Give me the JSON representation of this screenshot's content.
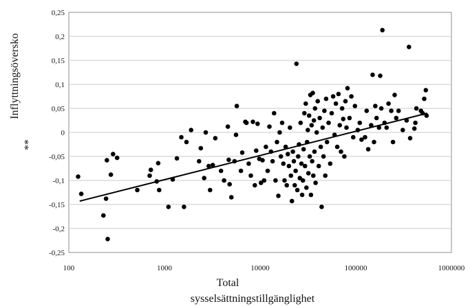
{
  "chart_data": {
    "type": "scatter",
    "title": "",
    "xlabel_lines": [
      "Total",
      "sysselsättningstillgänglighet"
    ],
    "ylabel": "Inflyttningsöversko",
    "ylabel_mark": "**",
    "x_scale": "log",
    "xlim": [
      100,
      1000000
    ],
    "ylim": [
      -0.25,
      0.25
    ],
    "x_ticks": [
      100,
      1000,
      10000,
      100000,
      1000000
    ],
    "x_tick_labels": [
      "100",
      "1000",
      "10000",
      "100000",
      "1000000"
    ],
    "y_ticks": [
      -0.25,
      -0.2,
      -0.15,
      -0.1,
      -0.05,
      0,
      0.05,
      0.1,
      0.15,
      0.2,
      0.25
    ],
    "y_tick_labels": [
      "-0,25",
      "-0,2",
      "-0,15",
      "-0,1",
      "-0,05",
      "0",
      "0,05",
      "0,1",
      "0,15",
      "0,2",
      "0,25"
    ],
    "grid": "horizontal",
    "trendline": {
      "x": [
        130,
        560000
      ],
      "y": [
        -0.143,
        0.04
      ]
    },
    "points": [
      [
        125,
        -0.092
      ],
      [
        135,
        -0.128
      ],
      [
        230,
        -0.173
      ],
      [
        245,
        -0.138
      ],
      [
        250,
        -0.058
      ],
      [
        255,
        -0.222
      ],
      [
        275,
        -0.088
      ],
      [
        290,
        -0.045
      ],
      [
        320,
        -0.053
      ],
      [
        520,
        -0.12
      ],
      [
        700,
        -0.09
      ],
      [
        720,
        -0.078
      ],
      [
        830,
        -0.102
      ],
      [
        860,
        -0.064
      ],
      [
        880,
        -0.12
      ],
      [
        1100,
        -0.155
      ],
      [
        1220,
        -0.098
      ],
      [
        1350,
        -0.054
      ],
      [
        1500,
        -0.01
      ],
      [
        1600,
        -0.155
      ],
      [
        1700,
        -0.02
      ],
      [
        1900,
        0.005
      ],
      [
        2300,
        -0.06
      ],
      [
        2400,
        -0.033
      ],
      [
        2600,
        -0.095
      ],
      [
        2700,
        0
      ],
      [
        2900,
        -0.07
      ],
      [
        3000,
        -0.12
      ],
      [
        3200,
        -0.068
      ],
      [
        3400,
        -0.012
      ],
      [
        3900,
        -0.08
      ],
      [
        4200,
        -0.1
      ],
      [
        4600,
        0.012
      ],
      [
        4700,
        -0.057
      ],
      [
        4800,
        -0.108
      ],
      [
        5000,
        -0.135
      ],
      [
        5400,
        -0.06
      ],
      [
        5600,
        -0.005
      ],
      [
        5700,
        0.055
      ],
      [
        6300,
        -0.08
      ],
      [
        6500,
        -0.042
      ],
      [
        7000,
        0.022
      ],
      [
        7200,
        0.02
      ],
      [
        7600,
        -0.065
      ],
      [
        8000,
        -0.09
      ],
      [
        8400,
        0.022
      ],
      [
        8800,
        -0.11
      ],
      [
        9100,
        -0.038
      ],
      [
        9400,
        0.018
      ],
      [
        9800,
        -0.055
      ],
      [
        10200,
        -0.105
      ],
      [
        10600,
        -0.058
      ],
      [
        11000,
        -0.1
      ],
      [
        11500,
        -0.03
      ],
      [
        12000,
        -0.08
      ],
      [
        12500,
        0.012
      ],
      [
        13000,
        -0.04
      ],
      [
        13500,
        -0.06
      ],
      [
        14000,
        0.04
      ],
      [
        14500,
        -0.1
      ],
      [
        15000,
        -0.02
      ],
      [
        15500,
        -0.132
      ],
      [
        16000,
        0
      ],
      [
        16500,
        -0.05
      ],
      [
        17000,
        0.02
      ],
      [
        17500,
        -0.065
      ],
      [
        18000,
        -0.1
      ],
      [
        18500,
        -0.03
      ],
      [
        19000,
        -0.11
      ],
      [
        19500,
        -0.045
      ],
      [
        20000,
        -0.07
      ],
      [
        20500,
        0.01
      ],
      [
        21000,
        -0.09
      ],
      [
        21500,
        -0.143
      ],
      [
        22000,
        -0.04
      ],
      [
        22500,
        -0.06
      ],
      [
        23000,
        -0.11
      ],
      [
        23500,
        -0.08
      ],
      [
        24000,
        0.143
      ],
      [
        24500,
        -0.12
      ],
      [
        25000,
        -0.05
      ],
      [
        25500,
        -0.025
      ],
      [
        26000,
        -0.095
      ],
      [
        26500,
        0.02
      ],
      [
        27000,
        -0.065
      ],
      [
        27500,
        -0.13
      ],
      [
        28000,
        -0.1
      ],
      [
        28500,
        -0.035
      ],
      [
        29000,
        0.04
      ],
      [
        29500,
        -0.07
      ],
      [
        30000,
        0.06
      ],
      [
        30500,
        -0.115
      ],
      [
        31000,
        -0.02
      ],
      [
        31500,
        0.005
      ],
      [
        32000,
        -0.085
      ],
      [
        32500,
        0.035
      ],
      [
        33000,
        -0.05
      ],
      [
        33500,
        0.078
      ],
      [
        34000,
        -0.13
      ],
      [
        34500,
        0.015
      ],
      [
        35000,
        -0.06
      ],
      [
        35500,
        0.082
      ],
      [
        36000,
        -0.09
      ],
      [
        36500,
        0.025
      ],
      [
        37000,
        -0.04
      ],
      [
        37500,
        0.05
      ],
      [
        38000,
        -0.105
      ],
      [
        39000,
        0
      ],
      [
        40000,
        0.065
      ],
      [
        41000,
        -0.07
      ],
      [
        42000,
        0.03
      ],
      [
        43000,
        -0.03
      ],
      [
        44000,
        -0.155
      ],
      [
        45000,
        0.01
      ],
      [
        46000,
        -0.05
      ],
      [
        47000,
        0.045
      ],
      [
        48000,
        -0.09
      ],
      [
        49000,
        0.07
      ],
      [
        50000,
        -0.02
      ],
      [
        52000,
        0.02
      ],
      [
        54000,
        -0.065
      ],
      [
        56000,
        0.04
      ],
      [
        58000,
        0.075
      ],
      [
        60000,
        -0.005
      ],
      [
        62000,
        0.06
      ],
      [
        64000,
        -0.03
      ],
      [
        66000,
        0.08
      ],
      [
        68000,
        0.015
      ],
      [
        70000,
        -0.04
      ],
      [
        72000,
        0.05
      ],
      [
        74000,
        0.028
      ],
      [
        76000,
        -0.05
      ],
      [
        78000,
        0.065
      ],
      [
        80000,
        0.01
      ],
      [
        82000,
        0.092
      ],
      [
        86000,
        0.03
      ],
      [
        90000,
        0.075
      ],
      [
        94000,
        -0.01
      ],
      [
        98000,
        0.055
      ],
      [
        105000,
        0.005
      ],
      [
        110000,
        0.02
      ],
      [
        115000,
        -0.015
      ],
      [
        125000,
        -0.01
      ],
      [
        130000,
        0.045
      ],
      [
        135000,
        -0.035
      ],
      [
        145000,
        0.015
      ],
      [
        150000,
        0.12
      ],
      [
        155000,
        -0.02
      ],
      [
        160000,
        0.055
      ],
      [
        165000,
        0.03
      ],
      [
        175000,
        0.01
      ],
      [
        180000,
        0.118
      ],
      [
        185000,
        0.05
      ],
      [
        190000,
        0.213
      ],
      [
        200000,
        0.02
      ],
      [
        210000,
        0.01
      ],
      [
        220000,
        0.06
      ],
      [
        235000,
        0.045
      ],
      [
        245000,
        -0.02
      ],
      [
        255000,
        0.078
      ],
      [
        265000,
        0.03
      ],
      [
        280000,
        0.045
      ],
      [
        310000,
        0.005
      ],
      [
        340000,
        0.025
      ],
      [
        360000,
        0.178
      ],
      [
        370000,
        -0.012
      ],
      [
        410000,
        0.008
      ],
      [
        420000,
        0.02
      ],
      [
        430000,
        0.05
      ],
      [
        480000,
        0.045
      ],
      [
        500000,
        0.04
      ],
      [
        520000,
        0.07
      ],
      [
        540000,
        0.088
      ],
      [
        550000,
        0.035
      ]
    ]
  },
  "colors": {
    "point": "#000000",
    "trendline": "#000000",
    "grid": "#c8c8c8",
    "border": "#8c8c8c"
  }
}
